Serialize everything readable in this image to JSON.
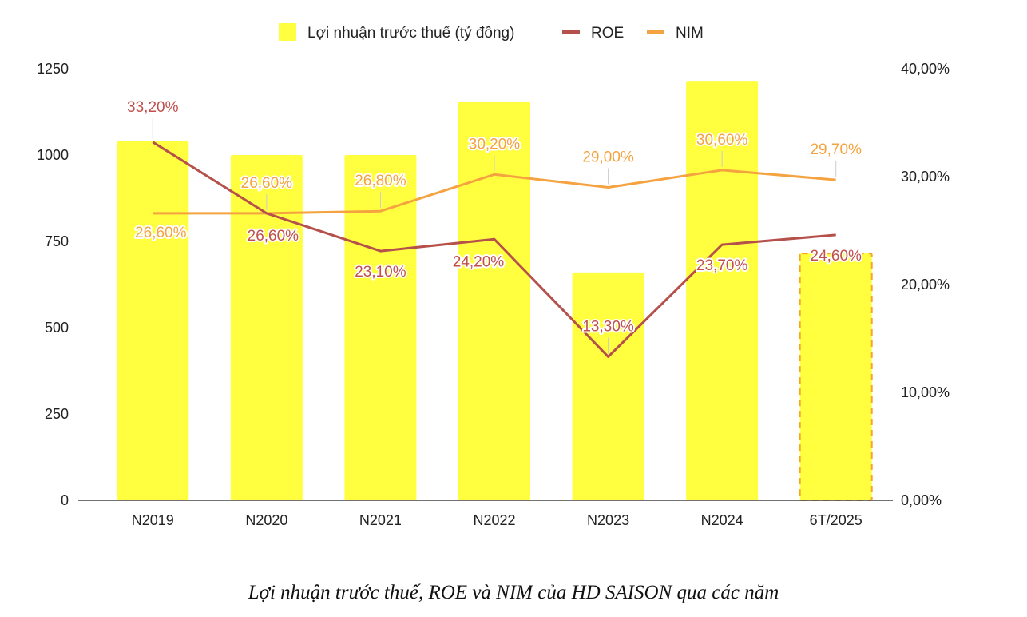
{
  "caption": "Lợi nhuận trước thuế, ROE và NIM của HD SAISON qua các năm",
  "colors": {
    "bar": "#ffff40",
    "bar_partial_border": "#f5a623",
    "roe": "#b5504b",
    "nim": "#f4a340",
    "roe_label": "#c0504d",
    "nim_label": "#f4a340",
    "axis": "#444444",
    "text": "#222222"
  },
  "chart_data": {
    "type": "bar",
    "title": "",
    "categories": [
      "N2019",
      "N2020",
      "N2021",
      "N2022",
      "N2023",
      "N2024",
      "6T/2025"
    ],
    "legend": {
      "position": "top",
      "entries": [
        "Lợi nhuận trước thuế (tỷ đồng)",
        "ROE",
        "NIM"
      ]
    },
    "left_axis": {
      "range": [
        0,
        1250
      ],
      "ticks": [
        "0",
        "250",
        "500",
        "750",
        "1000",
        "1250"
      ]
    },
    "right_axis": {
      "range": [
        0,
        40
      ],
      "ticks": [
        "0,00%",
        "10,00%",
        "20,00%",
        "30,00%",
        "40,00%"
      ]
    },
    "grid": false,
    "series": [
      {
        "name": "Lợi nhuận trước thuế (tỷ đồng)",
        "type": "bar",
        "axis": "left",
        "values": [
          1040,
          1000,
          1000,
          1155,
          660,
          1215,
          715
        ],
        "partial_last": true
      },
      {
        "name": "ROE",
        "type": "line",
        "axis": "right",
        "values": [
          33.2,
          26.6,
          23.1,
          24.2,
          13.3,
          23.7,
          24.6
        ],
        "labels": [
          "33,20%",
          "26,60%",
          "23,10%",
          "24,20%",
          "13,30%",
          "23,70%",
          "24,60%"
        ]
      },
      {
        "name": "NIM",
        "type": "line",
        "axis": "right",
        "values": [
          26.6,
          26.6,
          26.8,
          30.2,
          29.0,
          30.6,
          29.7
        ],
        "labels": [
          "26,60%",
          "26,60%",
          "26,80%",
          "30,20%",
          "29,00%",
          "30,60%",
          "29,70%"
        ]
      }
    ]
  }
}
